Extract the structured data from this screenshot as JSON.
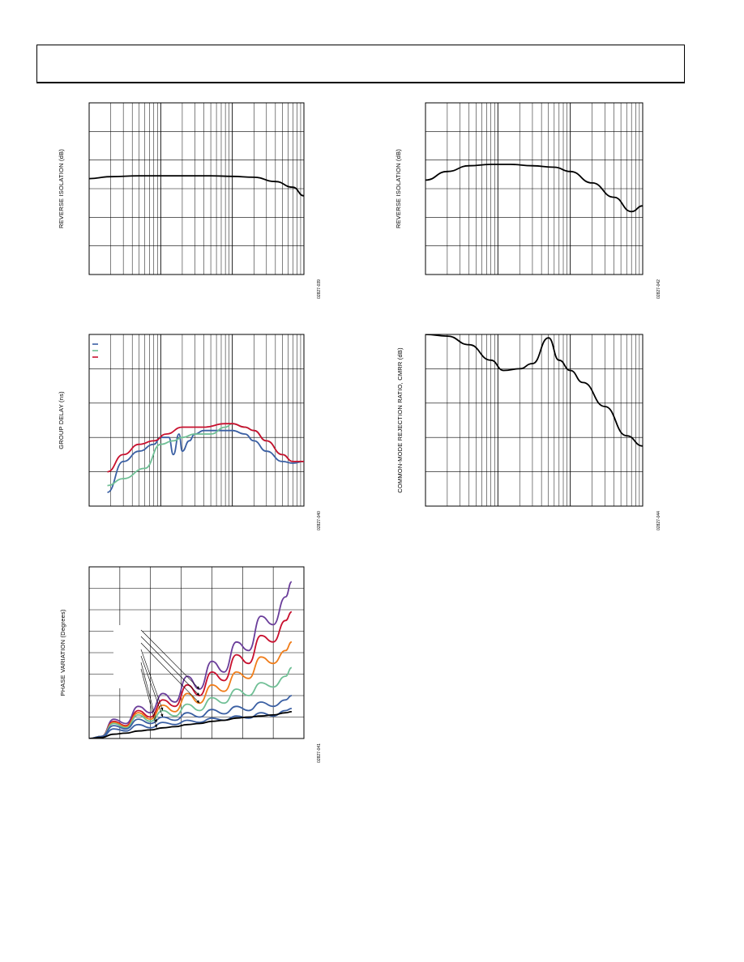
{
  "header": {
    "title": ""
  },
  "colors": {
    "black": "#000000",
    "blue": "#3a5fa3",
    "green": "#6fbf95",
    "red": "#c8102e",
    "orange": "#f07d1a",
    "purple": "#6a3d9a",
    "grid": "#000000"
  },
  "chart_data": [
    {
      "id": "reverse-isolation-1",
      "type": "line",
      "title": "",
      "xlabel": "",
      "ylabel": "REVERSE ISOLATION (dB)",
      "figure_id": "02827-039",
      "x_scale": "log",
      "xlim": [
        1,
        1000
      ],
      "ylim": [
        0,
        6
      ],
      "grid": true,
      "series": [
        {
          "color": "black",
          "x": [
            1,
            2,
            5,
            10,
            20,
            50,
            100,
            200,
            400,
            700,
            1000
          ],
          "y": [
            3.35,
            3.42,
            3.45,
            3.45,
            3.45,
            3.45,
            3.43,
            3.4,
            3.25,
            3.05,
            2.75
          ]
        }
      ]
    },
    {
      "id": "reverse-isolation-2",
      "type": "line",
      "title": "",
      "xlabel": "",
      "ylabel": "REVERSE ISOLATION (dB)",
      "figure_id": "02827-042",
      "x_scale": "log",
      "xlim": [
        1,
        1000
      ],
      "ylim": [
        0,
        6
      ],
      "grid": true,
      "series": [
        {
          "color": "black",
          "x": [
            1,
            2,
            4,
            8,
            15,
            30,
            60,
            100,
            200,
            400,
            700,
            1000
          ],
          "y": [
            3.3,
            3.6,
            3.8,
            3.85,
            3.85,
            3.8,
            3.75,
            3.6,
            3.2,
            2.7,
            2.2,
            2.4
          ]
        }
      ]
    },
    {
      "id": "group-delay",
      "type": "line",
      "title": "",
      "xlabel": "",
      "ylabel": "GROUP DELAY (ns)",
      "figure_id": "02827-040",
      "x_scale": "log",
      "xlim": [
        1,
        1000
      ],
      "ylim": [
        0,
        5
      ],
      "grid": true,
      "legend_position": "top-left",
      "series": [
        {
          "color": "blue",
          "x": [
            1.8,
            3,
            5,
            8,
            10,
            13,
            15,
            18,
            20,
            25,
            30,
            40,
            60,
            100,
            150,
            200,
            300,
            500,
            700,
            1000
          ],
          "y": [
            0.4,
            1.3,
            1.6,
            1.8,
            2.0,
            2.0,
            1.5,
            2.1,
            1.6,
            1.9,
            2.1,
            2.2,
            2.2,
            2.2,
            2.1,
            1.9,
            1.6,
            1.3,
            1.25,
            1.3
          ]
        },
        {
          "color": "green",
          "x": [
            1.8,
            3,
            6,
            10,
            15,
            20,
            30,
            50,
            80,
            100,
            150,
            200,
            300,
            500,
            700,
            1000
          ],
          "y": [
            0.6,
            0.8,
            1.1,
            1.8,
            1.9,
            2.0,
            2.1,
            2.1,
            2.3,
            2.4,
            2.3,
            2.2,
            1.9,
            1.5,
            1.3,
            1.3
          ]
        },
        {
          "color": "red",
          "x": [
            1.8,
            3,
            5,
            8,
            12,
            20,
            40,
            80,
            100,
            150,
            200,
            300,
            500,
            700,
            1000
          ],
          "y": [
            1.0,
            1.5,
            1.8,
            1.9,
            2.1,
            2.3,
            2.3,
            2.4,
            2.4,
            2.3,
            2.2,
            1.9,
            1.5,
            1.3,
            1.3
          ]
        }
      ]
    },
    {
      "id": "cmrr",
      "type": "line",
      "title": "",
      "xlabel": "",
      "ylabel": "COMMON-MODE REJECTION RATIO, CMRR (dB)",
      "figure_id": "02827-044",
      "x_scale": "log",
      "xlim": [
        1,
        1000
      ],
      "ylim": [
        0,
        5
      ],
      "grid": true,
      "series": [
        {
          "color": "black",
          "x": [
            1,
            2,
            4,
            8,
            12,
            20,
            30,
            50,
            70,
            100,
            150,
            300,
            600,
            1000
          ],
          "y": [
            5.0,
            4.95,
            4.7,
            4.25,
            3.95,
            4.0,
            4.15,
            4.9,
            4.25,
            3.95,
            3.6,
            2.9,
            2.05,
            1.75
          ]
        }
      ]
    },
    {
      "id": "phase-variation",
      "type": "line",
      "title": "",
      "xlabel": "",
      "ylabel": "PHASE VARIATION (Degrees)",
      "figure_id": "02827-041",
      "x_scale": "linear",
      "xlim": [
        0,
        7
      ],
      "ylim": [
        0,
        8
      ],
      "grid": true,
      "series": [
        {
          "color": "purple",
          "x": [
            0,
            0.4,
            0.8,
            1.2,
            1.6,
            2.0,
            2.4,
            2.8,
            3.2,
            3.6,
            4.0,
            4.4,
            4.8,
            5.2,
            5.6,
            6.0,
            6.4,
            6.6
          ],
          "y": [
            0,
            0.1,
            0.9,
            0.7,
            1.5,
            1.2,
            2.1,
            1.7,
            2.9,
            2.3,
            3.6,
            3.1,
            4.5,
            4.1,
            5.7,
            5.3,
            6.6,
            7.3
          ]
        },
        {
          "color": "red",
          "x": [
            0,
            0.4,
            0.8,
            1.2,
            1.6,
            2.0,
            2.4,
            2.8,
            3.2,
            3.6,
            4.0,
            4.4,
            4.8,
            5.2,
            5.6,
            6.0,
            6.4,
            6.6
          ],
          "y": [
            0,
            0.1,
            0.8,
            0.6,
            1.3,
            1.0,
            1.8,
            1.5,
            2.5,
            2.0,
            3.1,
            2.7,
            3.9,
            3.5,
            4.8,
            4.5,
            5.5,
            5.9
          ]
        },
        {
          "color": "orange",
          "x": [
            0,
            0.4,
            0.8,
            1.2,
            1.6,
            2.0,
            2.4,
            2.8,
            3.2,
            3.6,
            4.0,
            4.4,
            4.8,
            5.2,
            5.6,
            6.0,
            6.4,
            6.6
          ],
          "y": [
            0,
            0.1,
            0.75,
            0.55,
            1.2,
            0.9,
            1.55,
            1.25,
            2.1,
            1.65,
            2.5,
            2.2,
            3.1,
            2.8,
            3.8,
            3.5,
            4.1,
            4.5
          ]
        },
        {
          "color": "green",
          "x": [
            0,
            0.4,
            0.8,
            1.2,
            1.6,
            2.0,
            2.4,
            2.8,
            3.2,
            3.6,
            4.0,
            4.4,
            4.8,
            5.2,
            5.6,
            6.0,
            6.4,
            6.6
          ],
          "y": [
            0,
            0.1,
            0.7,
            0.5,
            1.1,
            0.8,
            1.3,
            1.05,
            1.6,
            1.3,
            1.9,
            1.65,
            2.3,
            2.0,
            2.6,
            2.4,
            2.9,
            3.3
          ]
        },
        {
          "color": "blue",
          "x": [
            0,
            0.4,
            0.8,
            1.2,
            1.6,
            2.0,
            2.4,
            2.8,
            3.2,
            3.6,
            4.0,
            4.4,
            4.8,
            5.2,
            5.6,
            6.0,
            6.4,
            6.6
          ],
          "y": [
            0,
            0.1,
            0.6,
            0.45,
            0.9,
            0.7,
            1.0,
            0.85,
            1.2,
            1.0,
            1.35,
            1.15,
            1.5,
            1.3,
            1.7,
            1.5,
            1.8,
            2.0
          ]
        },
        {
          "color": "blue",
          "x": [
            0,
            0.4,
            0.8,
            1.2,
            1.6,
            2.0,
            2.4,
            2.8,
            3.2,
            3.6,
            4.0,
            4.4,
            4.8,
            5.2,
            5.6,
            6.0,
            6.4,
            6.6
          ],
          "y": [
            0,
            0.05,
            0.45,
            0.35,
            0.65,
            0.5,
            0.75,
            0.65,
            0.85,
            0.75,
            0.95,
            0.85,
            1.05,
            0.95,
            1.2,
            1.05,
            1.3,
            1.4
          ]
        },
        {
          "color": "black",
          "x": [
            0,
            0.4,
            0.8,
            1.2,
            1.6,
            2.0,
            2.4,
            2.8,
            3.2,
            3.6,
            4.0,
            4.4,
            4.8,
            5.2,
            5.6,
            6.0,
            6.4,
            6.6
          ],
          "y": [
            0,
            0.05,
            0.2,
            0.25,
            0.35,
            0.4,
            0.5,
            0.55,
            0.65,
            0.7,
            0.8,
            0.85,
            0.95,
            1.0,
            1.05,
            1.1,
            1.2,
            1.25
          ]
        }
      ]
    }
  ]
}
